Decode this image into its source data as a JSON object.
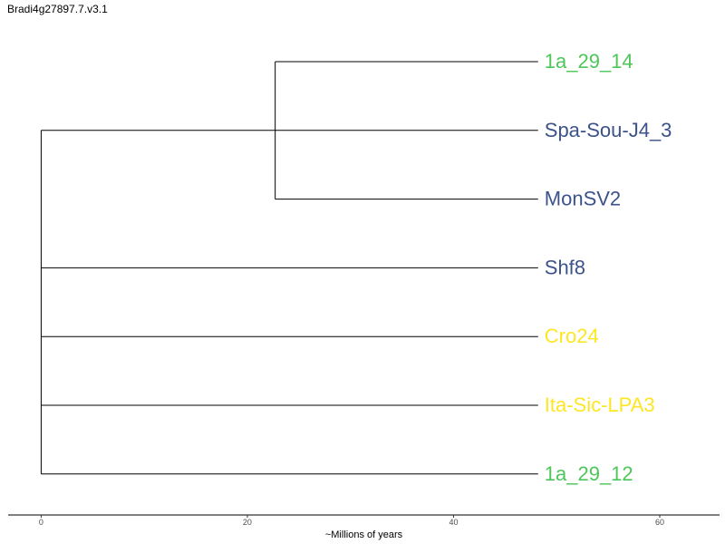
{
  "chart_data": {
    "type": "dendrogram",
    "title": "Bradi4g27897.7.v3.1",
    "xlabel": "~Millions of years",
    "xlim": [
      -3.2,
      65.8
    ],
    "x_ticks": [
      0,
      20,
      40,
      60
    ],
    "x_tick_labels": [
      "0",
      "20",
      "40",
      "60"
    ],
    "grid": false,
    "tip_x": 48.2,
    "leaves": [
      {
        "label": "1a_29_14",
        "color": "#4dc65a"
      },
      {
        "label": "Spa-Sou-J4_3",
        "color": "#3b528b"
      },
      {
        "label": "MonSV2",
        "color": "#3b528b"
      },
      {
        "label": "Shf8",
        "color": "#3b528b"
      },
      {
        "label": "Cro24",
        "color": "#fde725"
      },
      {
        "label": "Ita-Sic-LPA3",
        "color": "#fde725"
      },
      {
        "label": "1a_29_12",
        "color": "#4dc65a"
      }
    ],
    "internal_nodes": [
      {
        "x": 22.7,
        "children": [
          0,
          2
        ]
      },
      {
        "x": 0.0,
        "children": [
          1,
          3,
          4,
          5,
          6
        ]
      }
    ]
  }
}
